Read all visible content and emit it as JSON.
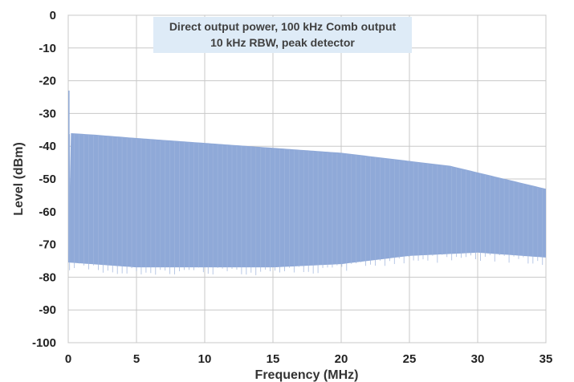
{
  "chart_data": {
    "type": "line",
    "title": "",
    "xlabel": "Frequency (MHz)",
    "ylabel": "Level (dBm)",
    "xlim": [
      0,
      35
    ],
    "ylim": [
      -100,
      0
    ],
    "x_ticks": [
      0,
      5,
      10,
      15,
      20,
      25,
      30,
      35
    ],
    "y_ticks": [
      0,
      -10,
      -20,
      -30,
      -40,
      -50,
      -60,
      -70,
      -80,
      -90,
      -100
    ],
    "grid": true,
    "legend": "none",
    "series_color": "#8fa9d8",
    "annotation": {
      "line1": "Direct output power, 100 kHz Comb output",
      "line2": "10 kHz RBW, peak detector"
    },
    "series": [
      {
        "peak_envelope": {
          "x": [
            0.2,
            2,
            5,
            10,
            15,
            20,
            25,
            28,
            30,
            32,
            33,
            34,
            35
          ],
          "y": [
            -36,
            -36.5,
            -37.5,
            -39,
            -40.5,
            -42,
            -44.5,
            -46,
            -48,
            -50,
            -51,
            -52,
            -53
          ]
        },
        "floor_envelope": {
          "x": [
            0,
            5,
            10,
            15,
            20,
            25,
            30,
            35
          ],
          "y": [
            -75.5,
            -77,
            -77,
            -77,
            -76,
            -73.5,
            -72.5,
            -74
          ]
        },
        "start_spike": {
          "x": 0.05,
          "y": -23
        }
      }
    ]
  }
}
